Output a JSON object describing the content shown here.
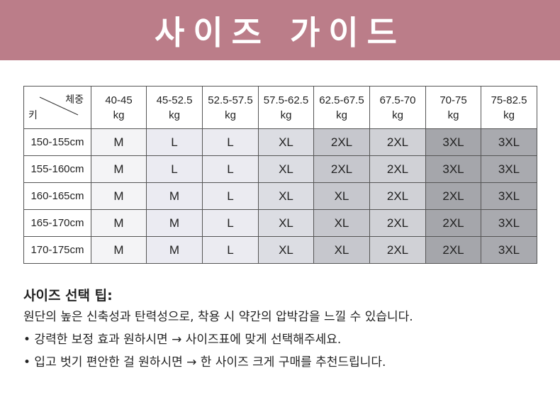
{
  "title": "사이즈 가이드",
  "table": {
    "corner_weight": "체중",
    "corner_height": "키",
    "columns": [
      {
        "range": "40-45",
        "unit": "kg"
      },
      {
        "range": "45-52.5",
        "unit": "kg"
      },
      {
        "range": "52.5-57.5",
        "unit": "kg"
      },
      {
        "range": "57.5-62.5",
        "unit": "kg"
      },
      {
        "range": "62.5-67.5",
        "unit": "kg"
      },
      {
        "range": "67.5-70",
        "unit": "kg"
      },
      {
        "range": "70-75",
        "unit": "kg"
      },
      {
        "range": "75-82.5",
        "unit": "kg"
      }
    ],
    "rows": [
      {
        "height": "150-155cm",
        "sizes": [
          "M",
          "L",
          "L",
          "XL",
          "2XL",
          "2XL",
          "3XL",
          "3XL"
        ]
      },
      {
        "height": "155-160cm",
        "sizes": [
          "M",
          "L",
          "L",
          "XL",
          "2XL",
          "2XL",
          "3XL",
          "3XL"
        ]
      },
      {
        "height": "160-165cm",
        "sizes": [
          "M",
          "M",
          "L",
          "XL",
          "XL",
          "2XL",
          "2XL",
          "3XL"
        ]
      },
      {
        "height": "165-170cm",
        "sizes": [
          "M",
          "M",
          "L",
          "XL",
          "XL",
          "2XL",
          "2XL",
          "3XL"
        ]
      },
      {
        "height": "170-175cm",
        "sizes": [
          "M",
          "M",
          "L",
          "XL",
          "XL",
          "2XL",
          "2XL",
          "3XL"
        ]
      }
    ]
  },
  "tips": {
    "heading": "사이즈 선택 팁:",
    "lines": [
      "원단의 높은 신축성과 탄력성으로, 착용 시 약간의 압박감을 느낄 수 있습니다.",
      "• 강력한 보정 효과 원하시면 → 사이즈표에 맞게 선택해주세요.",
      "• 입고 벗기 편안한 걸 원하시면 → 한 사이즈 크게 구매를 추천드립니다."
    ]
  },
  "colors": {
    "banner": "#bb7d89"
  }
}
